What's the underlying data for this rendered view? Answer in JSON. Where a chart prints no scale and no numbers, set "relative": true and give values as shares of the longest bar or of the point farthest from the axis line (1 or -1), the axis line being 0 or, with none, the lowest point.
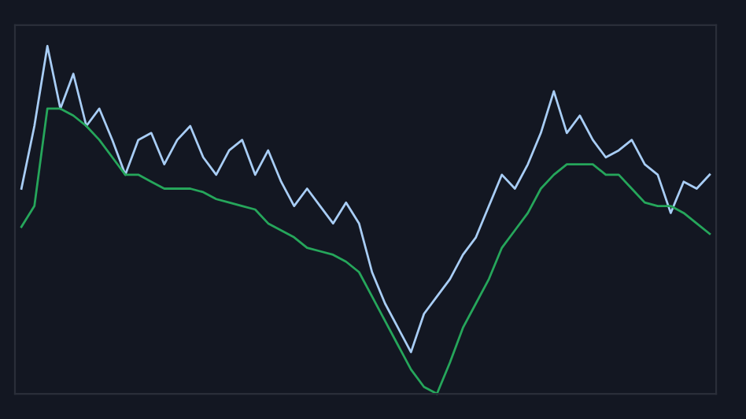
{
  "chart_data": {
    "type": "line",
    "relative": true,
    "legend": false,
    "categories": [
      null,
      null,
      null,
      null,
      null,
      null,
      null,
      null,
      null,
      null,
      null,
      null,
      null,
      null,
      null,
      null,
      null,
      null,
      null,
      null,
      null,
      null,
      null,
      null,
      null,
      null,
      null,
      null,
      null,
      null,
      null,
      null,
      null,
      null,
      null,
      null,
      null,
      null,
      null,
      null,
      null,
      null,
      null,
      null,
      null,
      null,
      null,
      null,
      null,
      null,
      null,
      null,
      null,
      null
    ],
    "series": [
      {
        "color": "#a8cdf5",
        "values": [
          0.59,
          0.77,
          1,
          0.82,
          0.92,
          0.77,
          0.82,
          0.73,
          0.63,
          0.73,
          0.75,
          0.66,
          0.73,
          0.77,
          0.68,
          0.63,
          0.7,
          0.73,
          0.63,
          0.7,
          0.61,
          0.54,
          0.59,
          0.54,
          0.49,
          0.55,
          0.49,
          0.35,
          0.26,
          0.19,
          0.12,
          0.23,
          0.28,
          0.33,
          0.4,
          0.45,
          0.54,
          0.63,
          0.59,
          0.66,
          0.75,
          0.87,
          0.75,
          0.8,
          0.73,
          0.68,
          0.7,
          0.73,
          0.66,
          0.63,
          0.52,
          0.61,
          0.59,
          0.63
        ]
      },
      {
        "color": "#26a65b",
        "values": [
          0.48,
          0.54,
          0.82,
          0.82,
          0.8,
          0.77,
          0.73,
          0.68,
          0.63,
          0.63,
          0.61,
          0.59,
          0.59,
          0.59,
          0.58,
          0.56,
          0.55,
          0.54,
          0.53,
          0.49,
          0.47,
          0.45,
          0.42,
          0.41,
          0.4,
          0.38,
          0.35,
          0.28,
          0.21,
          0.14,
          0.07,
          0.02,
          0,
          0.09,
          0.19,
          0.26,
          0.33,
          0.42,
          0.47,
          0.52,
          0.59,
          0.63,
          0.66,
          0.66,
          0.66,
          0.63,
          0.63,
          0.59,
          0.55,
          0.54,
          0.54,
          0.52,
          0.49,
          0.46
        ]
      }
    ]
  }
}
